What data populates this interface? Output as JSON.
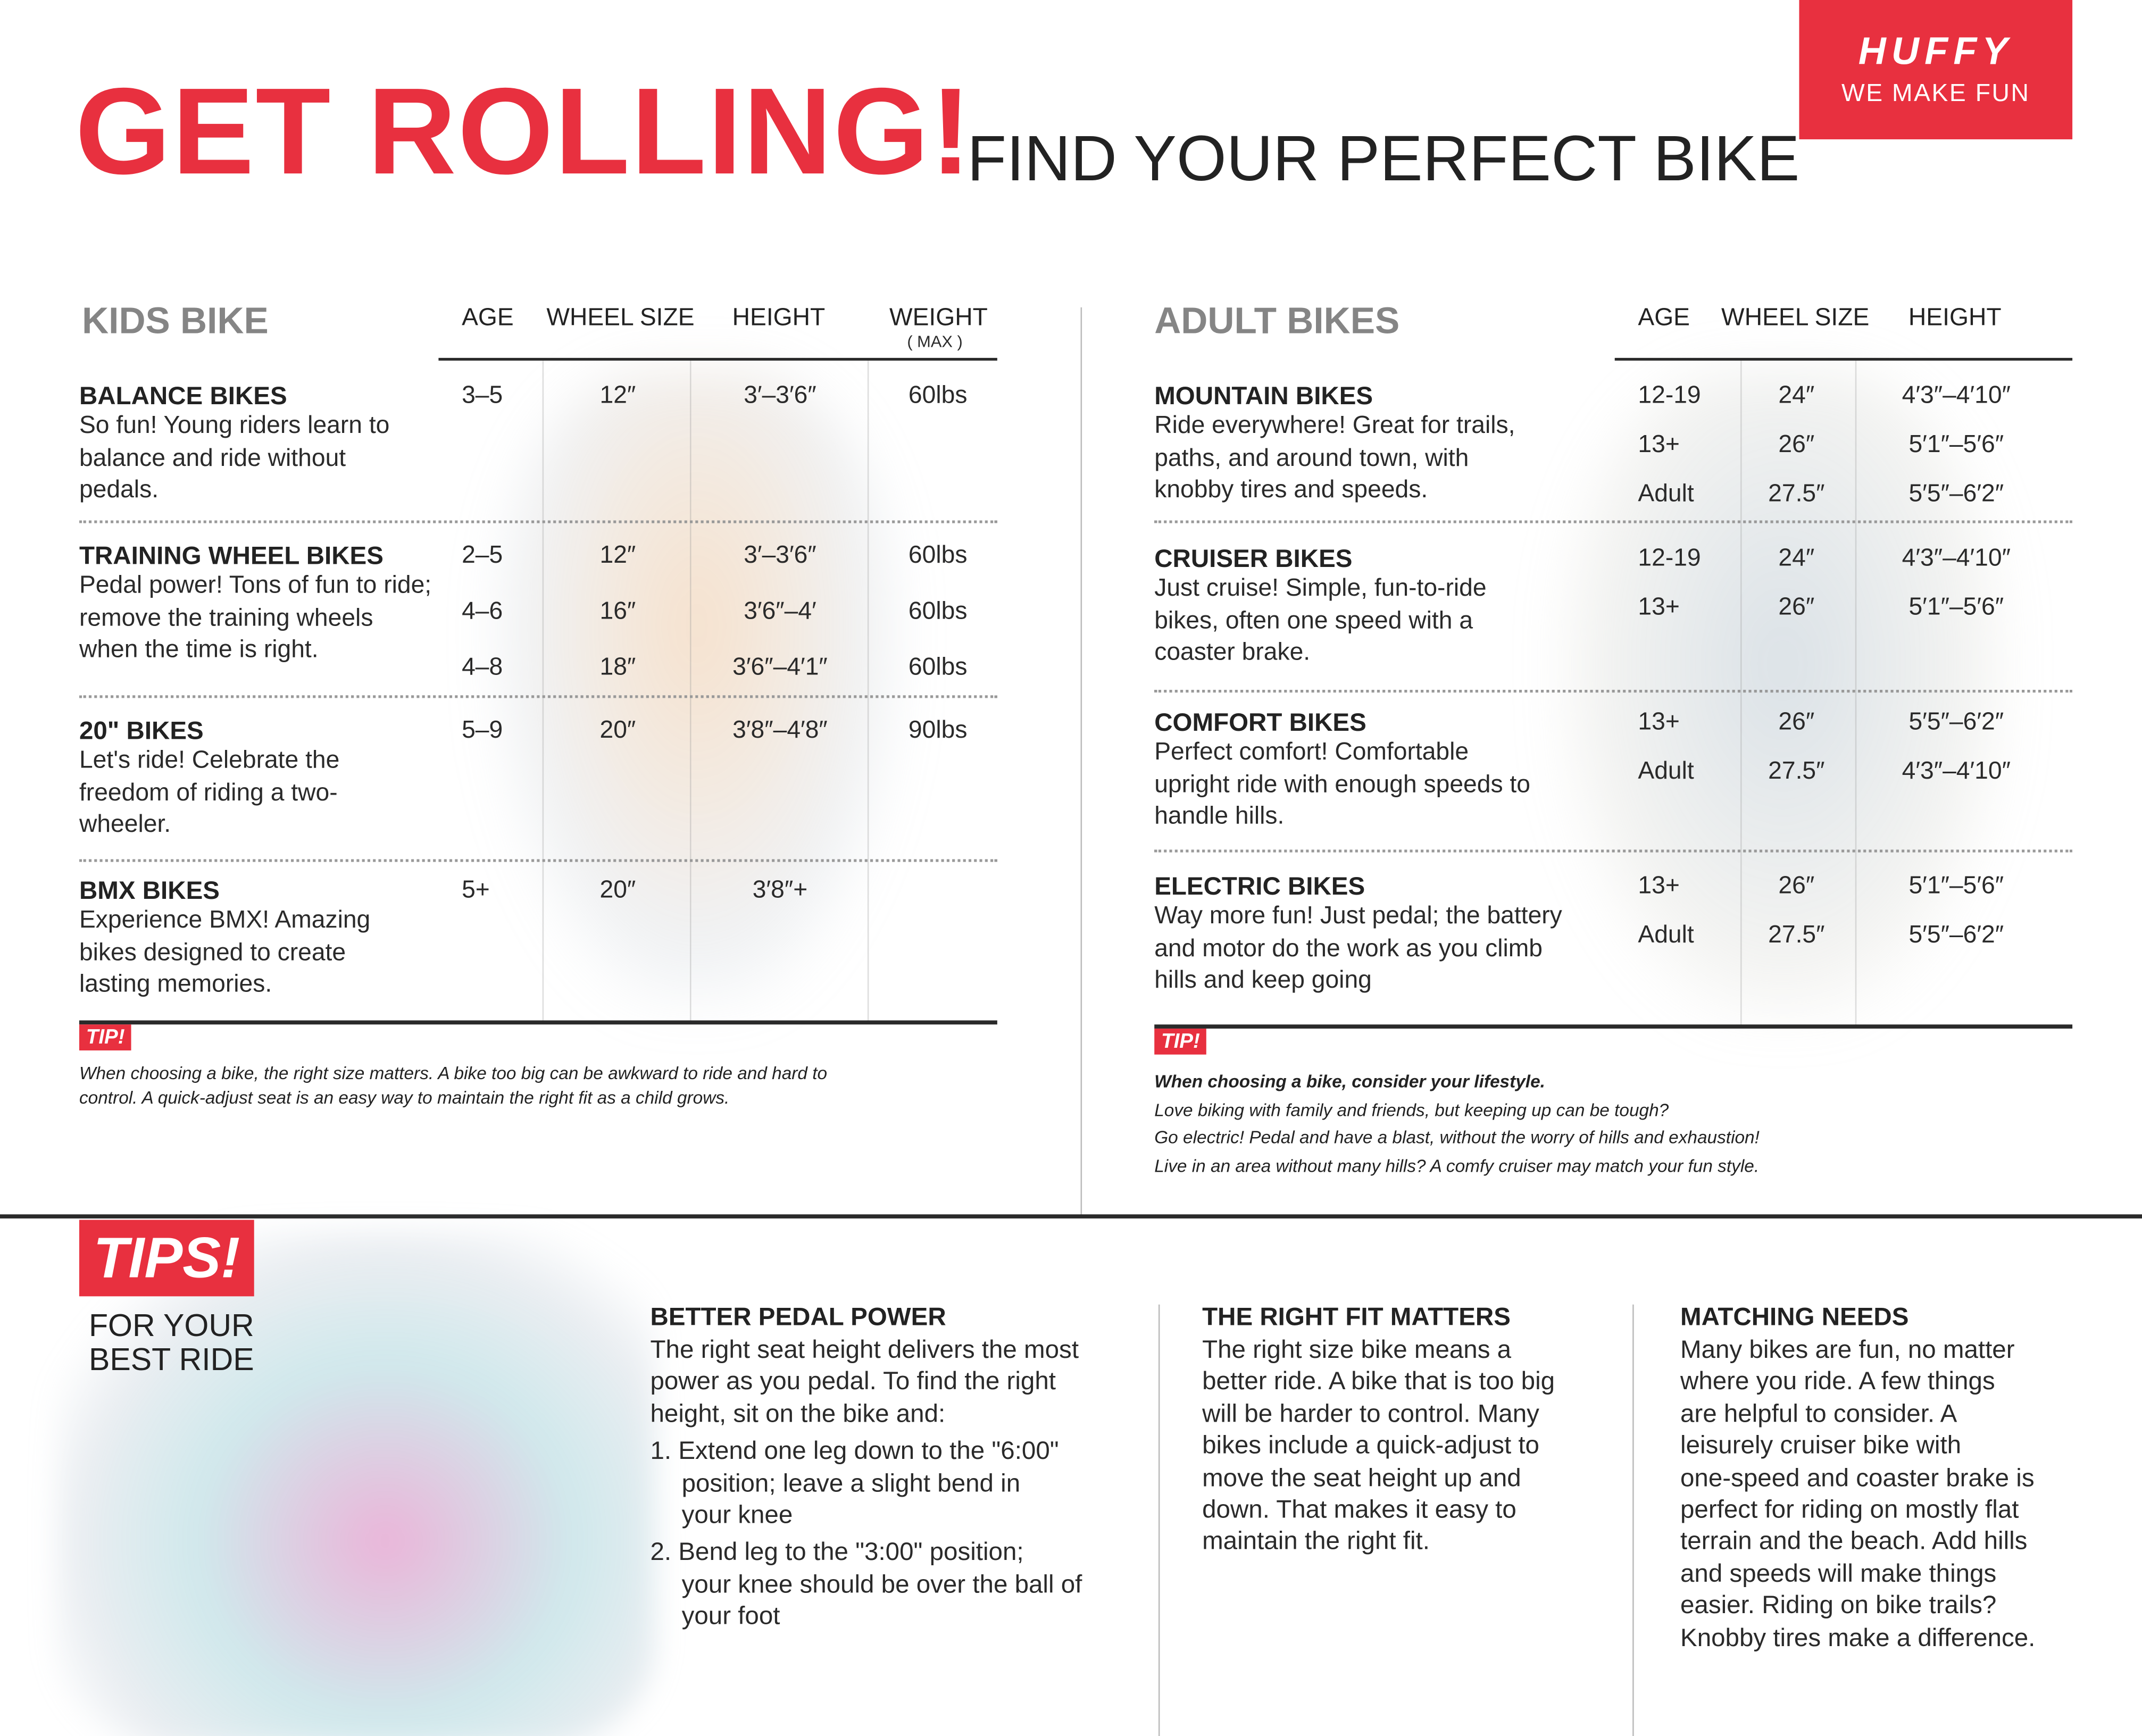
{
  "header": {
    "title": "GET ROLLING!",
    "subtitle": "FIND YOUR PERFECT BIKE",
    "logo_brand": "HUFFY",
    "logo_tagline": "WE MAKE FUN"
  },
  "colors": {
    "accent": "#e8303f",
    "section_heading": "#858585",
    "text": "#2a2a2a"
  },
  "kids": {
    "heading": "KIDS BIKE",
    "columns": [
      "AGE",
      "WHEEL SIZE",
      "HEIGHT",
      "WEIGHT"
    ],
    "weight_note": "( MAX )",
    "rows": [
      {
        "title": "BALANCE BIKES",
        "desc": "So fun! Young riders learn to balance and ride without pedals.",
        "sizes": [
          {
            "age": "3–5",
            "wheel": "12″",
            "height": "3′–3′6″",
            "weight": "60lbs"
          }
        ]
      },
      {
        "title": "TRAINING WHEEL BIKES",
        "desc": "Pedal power! Tons of fun to ride; remove the training wheels when the time is right.",
        "sizes": [
          {
            "age": "2–5",
            "wheel": "12″",
            "height": "3′–3′6″",
            "weight": "60lbs"
          },
          {
            "age": "4–6",
            "wheel": "16″",
            "height": "3′6″–4′",
            "weight": "60lbs"
          },
          {
            "age": "4–8",
            "wheel": "18″",
            "height": "3′6″–4′1″",
            "weight": "60lbs"
          }
        ]
      },
      {
        "title": "20\" BIKES",
        "desc": "Let's ride! Celebrate the freedom of riding a two-wheeler.",
        "sizes": [
          {
            "age": "5–9",
            "wheel": "20″",
            "height": "3′8″–4′8″",
            "weight": "90lbs"
          }
        ]
      },
      {
        "title": "BMX BIKES",
        "desc": "Experience BMX! Amazing bikes designed to create lasting memories.",
        "sizes": [
          {
            "age": "5+",
            "wheel": "20″",
            "height": "3′8″+",
            "weight": ""
          }
        ]
      }
    ],
    "tip_label": "TIP!",
    "tip_lines": [
      "When choosing a bike, the right size matters. A bike too big can be awkward to ride and hard to",
      "control. A quick-adjust seat is an easy way to maintain the right fit as a child grows."
    ]
  },
  "adult": {
    "heading": "ADULT BIKES",
    "columns": [
      "AGE",
      "WHEEL SIZE",
      "HEIGHT"
    ],
    "rows": [
      {
        "title": "MOUNTAIN BIKES",
        "desc": "Ride everywhere! Great for trails, paths, and around town, with knobby tires and speeds.",
        "sizes": [
          {
            "age": "12-19",
            "wheel": "24″",
            "height": "4′3″–4′10″"
          },
          {
            "age": "13+",
            "wheel": "26″",
            "height": "5′1″–5′6″"
          },
          {
            "age": "Adult",
            "wheel": "27.5″",
            "height": "5′5″–6′2″"
          }
        ]
      },
      {
        "title": "CRUISER BIKES",
        "desc": "Just cruise! Simple, fun-to-ride bikes, often one speed with a coaster brake.",
        "sizes": [
          {
            "age": "12-19",
            "wheel": "24″",
            "height": "4′3″–4′10″"
          },
          {
            "age": "13+",
            "wheel": "26″",
            "height": "5′1″–5′6″"
          }
        ]
      },
      {
        "title": "COMFORT BIKES",
        "desc": "Perfect comfort! Comfortable upright ride with enough speeds to handle hills.",
        "sizes": [
          {
            "age": "13+",
            "wheel": "26″",
            "height": "5′5″–6′2″"
          },
          {
            "age": "Adult",
            "wheel": "27.5″",
            "height": "4′3″–4′10″"
          }
        ]
      },
      {
        "title": "ELECTRIC BIKES",
        "desc": "Way more fun! Just pedal; the battery and motor do the work as you climb hills and keep going",
        "sizes": [
          {
            "age": "13+",
            "wheel": "26″",
            "height": "5′1″–5′6″"
          },
          {
            "age": "Adult",
            "wheel": "27.5″",
            "height": "5′5″–6′2″"
          }
        ]
      }
    ],
    "tip_label": "TIP!",
    "tip_lines": [
      "When choosing a bike, consider your lifestyle.",
      "Love biking with family and friends, but keeping up can be tough?",
      "Go electric! Pedal and have a blast, without the worry of hills and exhaustion!",
      "Live in an area without many hills? A comfy cruiser may match your fun style."
    ]
  },
  "tips": {
    "badge": "TIPS!",
    "subtitle_lines": [
      "FOR YOUR",
      "BEST RIDE"
    ],
    "columns": [
      {
        "title": "BETTER PEDAL POWER",
        "lines": [
          "The right seat height delivers the most",
          "power as you pedal. To find the right",
          "height, sit on the bike and:"
        ],
        "steps": [
          [
            "1. Extend one leg down to the \"6:00\"",
            "position; leave a slight bend in",
            "your knee"
          ],
          [
            "2. Bend leg to the \"3:00\" position;",
            "your knee should be over the ball of",
            "your foot"
          ]
        ]
      },
      {
        "title": "THE RIGHT FIT MATTERS",
        "lines": [
          "The right size bike means a",
          "better ride. A bike that is too big",
          "will be harder to control. Many",
          "bikes include a quick-adjust to",
          "move the seat height up and",
          "down. That makes it easy to",
          "maintain the right fit."
        ]
      },
      {
        "title": "MATCHING NEEDS",
        "lines": [
          "Many bikes are fun, no matter",
          "where you ride. A few things",
          "are helpful to consider. A",
          "leisurely cruiser bike with",
          "one-speed and coaster brake is",
          "perfect for riding on mostly flat",
          "terrain and the beach. Add hills",
          "and speeds will make things",
          "easier. Riding on bike trails?",
          "Knobby tires make a difference."
        ]
      }
    ]
  }
}
